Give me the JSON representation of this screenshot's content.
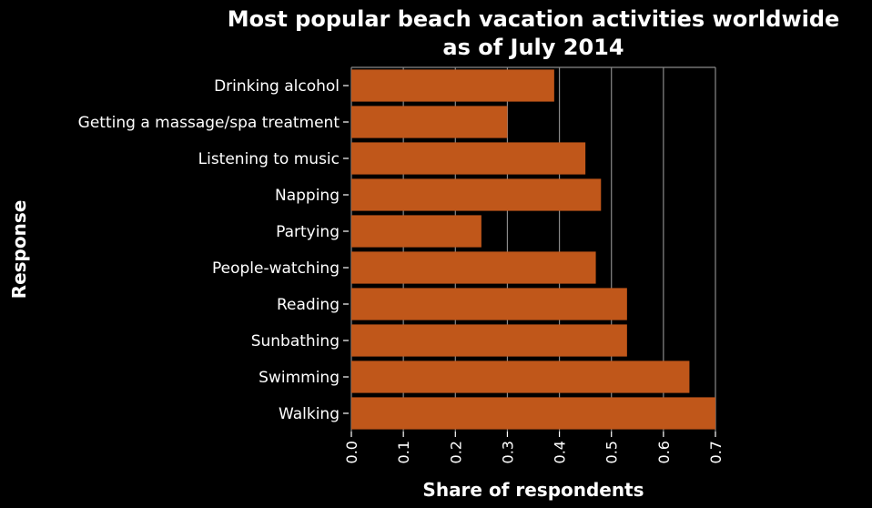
{
  "chart_data": {
    "type": "bar",
    "orientation": "horizontal",
    "title": "Most popular beach vacation activities worldwide as of July 2014",
    "title_lines": [
      "Most popular beach vacation activities worldwide",
      "as of July 2014"
    ],
    "xlabel": "Share of respondents",
    "ylabel": "Response",
    "categories": [
      "Drinking alcohol",
      "Getting a massage/spa treatment",
      "Listening to music",
      "Napping",
      "Partying",
      "People-watching",
      "Reading",
      "Sunbathing",
      "Swimming",
      "Walking"
    ],
    "values": [
      0.39,
      0.3,
      0.45,
      0.48,
      0.25,
      0.47,
      0.53,
      0.53,
      0.65,
      0.7
    ],
    "xlim": [
      0,
      0.7
    ],
    "xticks": [
      "0.0",
      "0.1",
      "0.2",
      "0.3",
      "0.4",
      "0.5",
      "0.6",
      "0.7"
    ],
    "grid": "vertical",
    "colors": {
      "bar": "#c0571a",
      "background": "#000000",
      "grid": "#8a8a8a",
      "text": "#ffffff"
    }
  }
}
